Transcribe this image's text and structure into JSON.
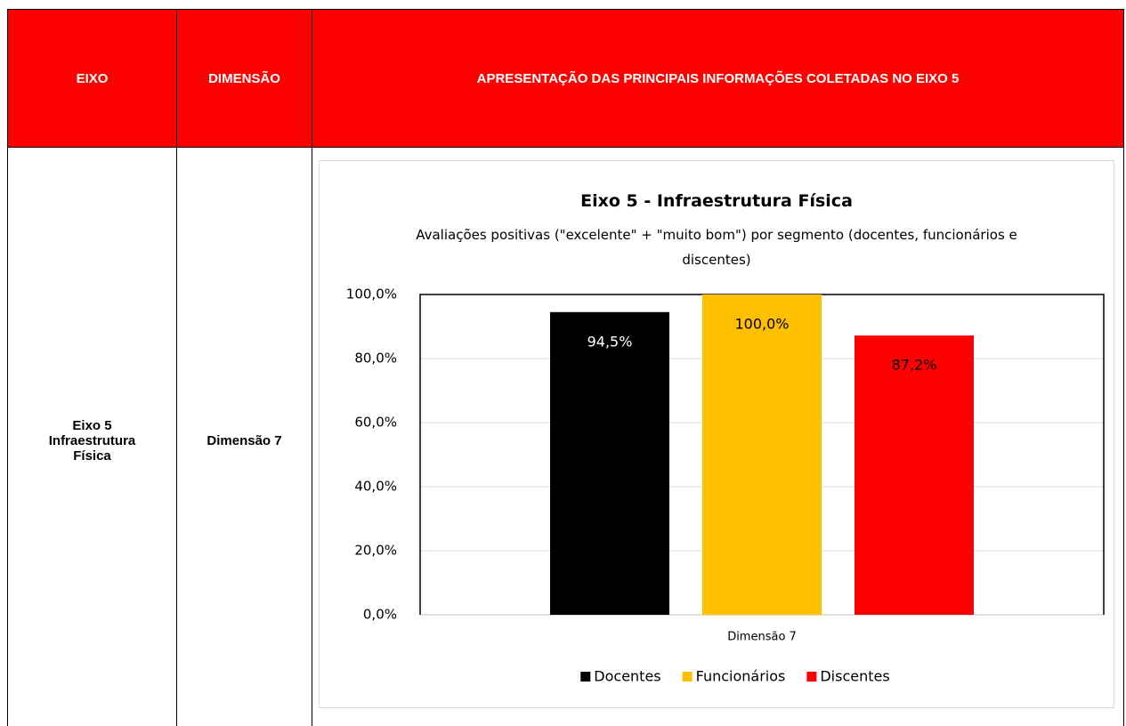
{
  "table": {
    "header": [
      "EIXO",
      "DIMENSÃO",
      "APRESENTAÇÃO DAS PRINCIPAIS INFORMAÇÕES COLETADAS NO EIXO 5"
    ],
    "rows": [
      [
        [
          "Eixo 5",
          "Infraestrutura",
          "Física"
        ],
        "Dimensão 7"
      ]
    ]
  },
  "chart_data": {
    "type": "bar",
    "title": "Eixo 5 - Infraestrutura Física",
    "subtitle": "Avaliações positivas (\"excelente\" + \"muito bom\") por segmento (docentes, funcionários e discentes)",
    "categories": [
      "Dimensão 7"
    ],
    "series": [
      {
        "name": "Docentes",
        "color": "#000000",
        "label_color": "#ffffff",
        "values": [
          94.5
        ],
        "value_labels": [
          "94,5%"
        ]
      },
      {
        "name": "Funcionários",
        "color": "#ffc000",
        "label_color": "#000000",
        "values": [
          100
        ],
        "value_labels": [
          "100,0%"
        ]
      },
      {
        "name": "Discentes",
        "color": "#ff0000",
        "label_color": "#000000",
        "values": [
          87.2
        ],
        "value_labels": [
          "87,2%"
        ]
      }
    ],
    "ylim": [
      0,
      100
    ],
    "yticks": [
      {
        "value": 0,
        "label": "0,0%"
      },
      {
        "value": 20,
        "label": "20,0%"
      },
      {
        "value": 40,
        "label": "40,0%"
      },
      {
        "value": 60,
        "label": "60,0%"
      },
      {
        "value": 80,
        "label": "80,0%"
      },
      {
        "value": 100,
        "label": "100,0%"
      }
    ],
    "grid": true,
    "legend": "bottom"
  }
}
